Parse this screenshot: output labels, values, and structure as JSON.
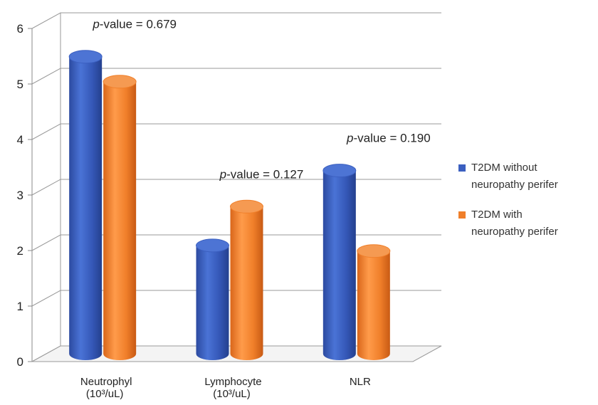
{
  "chart_data": {
    "type": "bar",
    "title": "",
    "xlabel": "",
    "ylabel": "",
    "ylim": [
      0,
      6
    ],
    "yticks": [
      0,
      1,
      2,
      3,
      4,
      5,
      6
    ],
    "grid": true,
    "style": "3d-cylinder",
    "categories": [
      {
        "line1": "Neutrophyl",
        "line2": "(10³/uL)"
      },
      {
        "line1": "Lymphocyte",
        "line2": "(10³/uL)"
      },
      {
        "line1": "NLR",
        "line2": ""
      }
    ],
    "series": [
      {
        "name_line1": "T2DM  without",
        "name_line2": "neuropathy perifer",
        "color": "#3b5fc0",
        "values": [
          5.35,
          1.95,
          3.3
        ]
      },
      {
        "name_line1": "T2DM  with",
        "name_line2": "neuropathy perifer",
        "color": "#f07f2a",
        "values": [
          4.9,
          2.65,
          1.85
        ]
      }
    ],
    "annotations": [
      {
        "italic": "p",
        "text": "-value = 0.679"
      },
      {
        "italic": "p",
        "text": "-value = 0.127"
      },
      {
        "italic": "p",
        "text": "-value = 0.190"
      }
    ],
    "legend_position": "right"
  }
}
